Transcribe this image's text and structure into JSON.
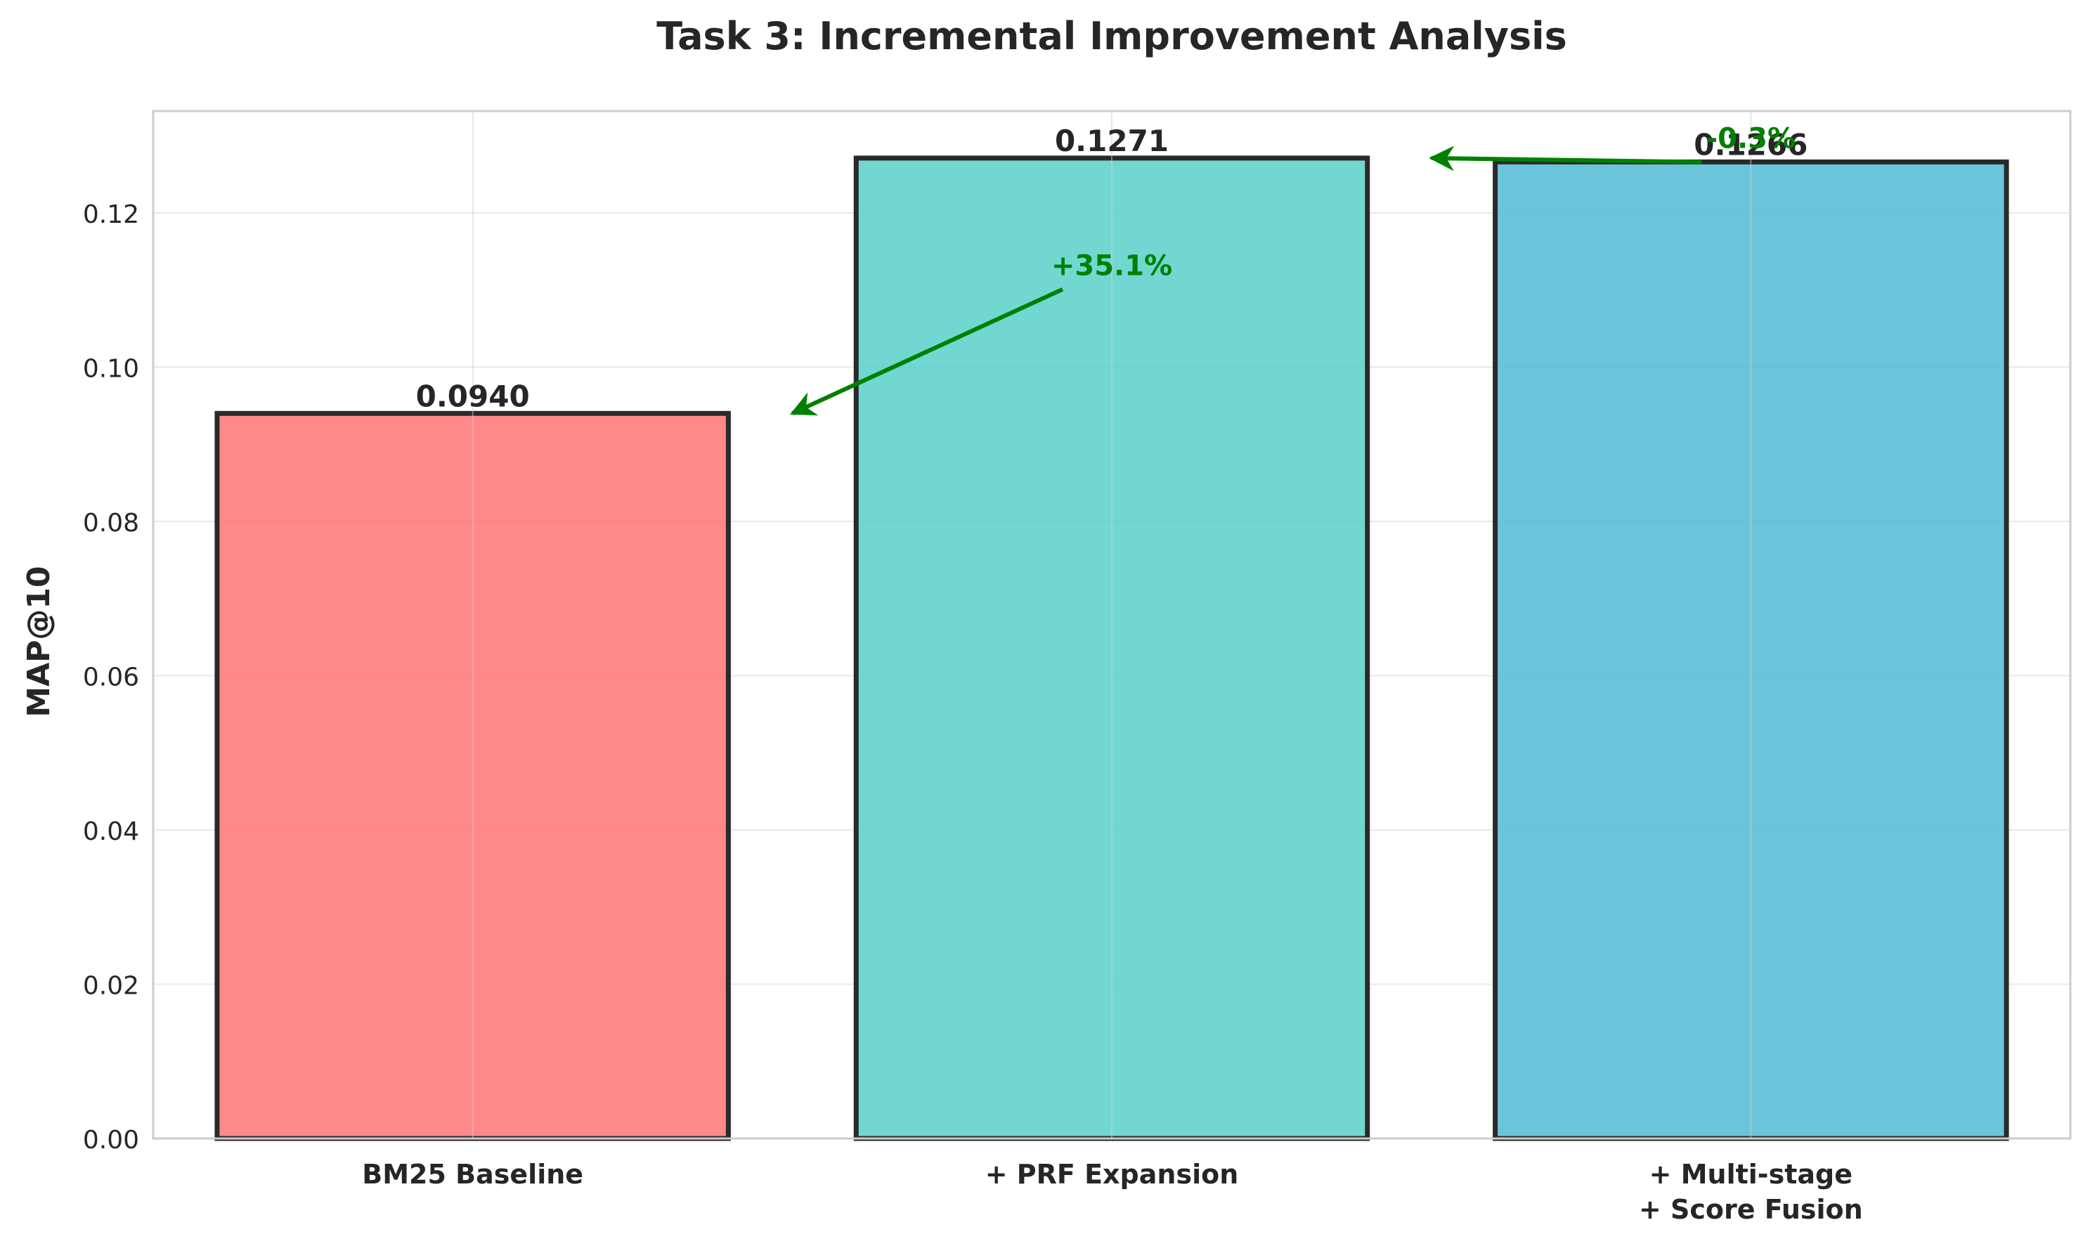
{
  "chart_data": {
    "type": "bar",
    "title": "Task 3: Incremental Improvement Analysis",
    "xlabel": "",
    "ylabel": "MAP@10",
    "categories": [
      [
        "BM25 Baseline"
      ],
      [
        "+ PRF Expansion"
      ],
      [
        "+ Multi-stage",
        "+ Score Fusion"
      ]
    ],
    "values": [
      0.094,
      0.1271,
      0.1266
    ],
    "value_labels": [
      "0.0940",
      "0.1271",
      "0.1266"
    ],
    "bar_colors": [
      "#ff6b6b",
      "#4ecdc4",
      "#45b7d1"
    ],
    "bar_edge_color": "#2a2a2a",
    "ylim": [
      0,
      0.1332
    ],
    "yticks": [
      0.0,
      0.02,
      0.04,
      0.06,
      0.08,
      0.1,
      0.12
    ],
    "ytick_labels": [
      "0.00",
      "0.02",
      "0.04",
      "0.06",
      "0.08",
      "0.10",
      "0.12"
    ],
    "grid": true,
    "annotations": [
      {
        "text": "+35.1%",
        "color": "#008000",
        "text_at": {
          "category_index": 1,
          "value": 0.111
        },
        "arrow_to": {
          "category_index": 0.5,
          "value": 0.094
        }
      },
      {
        "text": "-0.3%",
        "color": "#008000",
        "text_at": {
          "category_index": 2,
          "value": 0.1275
        },
        "arrow_to": {
          "category_index": 1.5,
          "value": 0.1271
        }
      }
    ]
  }
}
